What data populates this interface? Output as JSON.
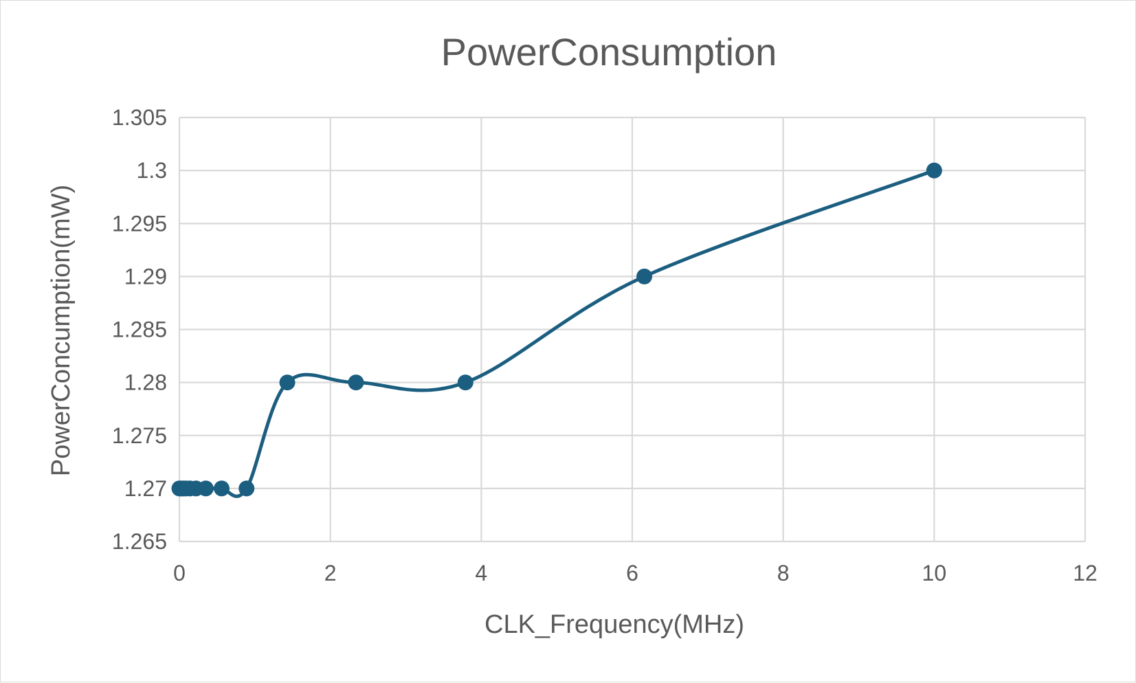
{
  "chart_data": {
    "type": "line",
    "title": "PowerConsumption",
    "xlabel": "CLK_Frequency(MHz)",
    "ylabel": "PowerConcumption(mW)",
    "xlim": [
      0,
      12
    ],
    "ylim": [
      1.265,
      1.305
    ],
    "x_ticks": [
      "0",
      "2",
      "4",
      "6",
      "8",
      "10",
      "12"
    ],
    "y_ticks": [
      "1.265",
      "1.27",
      "1.275",
      "1.28",
      "1.285",
      "1.29",
      "1.295",
      "1.3",
      "1.305"
    ],
    "grid": true,
    "legend": "none",
    "smooth": true,
    "series": [
      {
        "color": "#1b5e80",
        "x": [
          0.0,
          0.02,
          0.04,
          0.06,
          0.09,
          0.14,
          0.22,
          0.35,
          0.56,
          0.89,
          1.43,
          2.34,
          3.79,
          6.16,
          10.0
        ],
        "y": [
          1.27,
          1.27,
          1.27,
          1.27,
          1.27,
          1.27,
          1.27,
          1.27,
          1.27,
          1.27,
          1.28,
          1.28,
          1.28,
          1.29,
          1.3
        ]
      }
    ]
  }
}
